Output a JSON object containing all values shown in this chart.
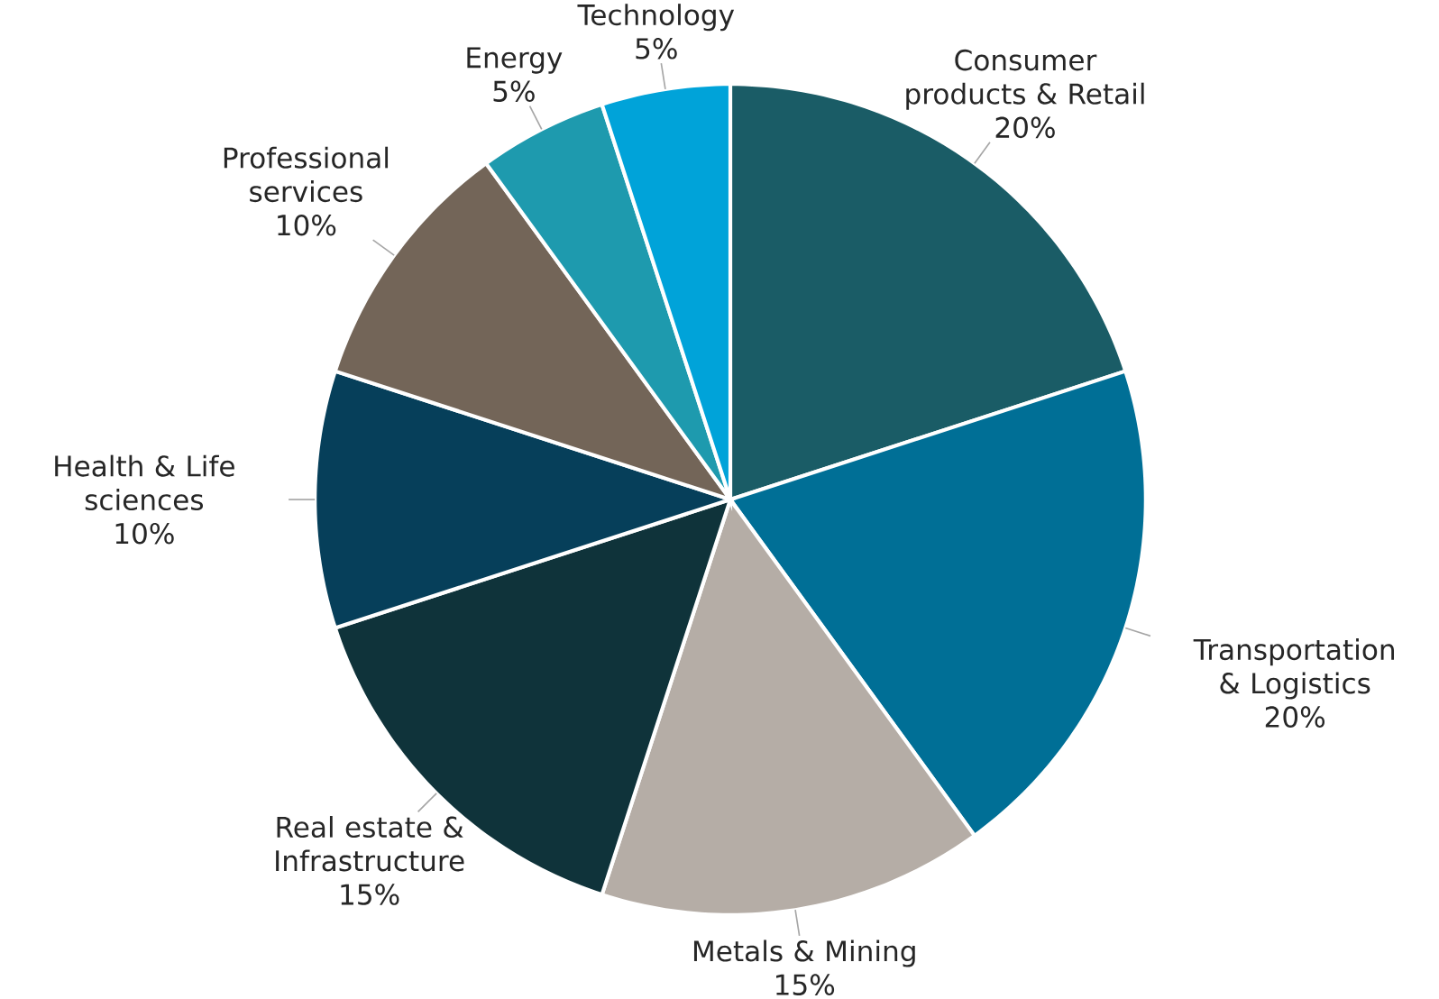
{
  "chart_data": {
    "type": "pie",
    "categories": [
      "Consumer products & Retail",
      "Transportation & Logistics",
      "Metals & Mining",
      "Real estate & Infrastructure",
      "Health & Life sciences",
      "Professional services",
      "Energy",
      "Technology"
    ],
    "values": [
      20,
      20,
      15,
      15,
      10,
      10,
      5,
      5
    ],
    "value_labels": [
      "20%",
      "20%",
      "15%",
      "15%",
      "10%",
      "10%",
      "5%",
      "5%"
    ],
    "colors": [
      "#1a5c66",
      "#006f96",
      "#b5ada6",
      "#0f333a",
      "#063f5a",
      "#736558",
      "#1e9aae",
      "#00a3d9"
    ]
  }
}
